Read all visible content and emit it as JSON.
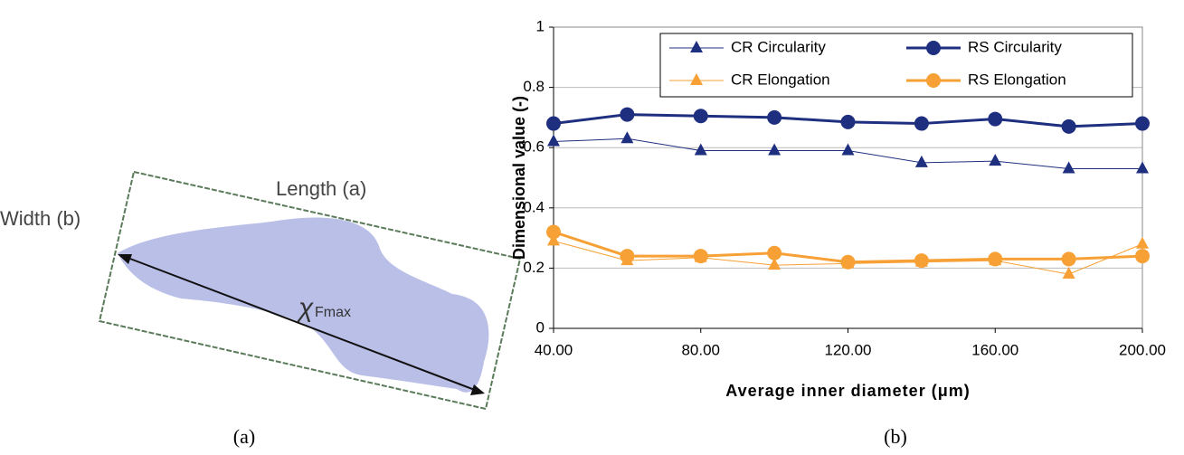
{
  "diagram": {
    "length_label": "Length (a)",
    "width_label": "Width (b)",
    "chi_symbol": "χ",
    "chi_subscript": "Fmax"
  },
  "captions": [
    "(a)",
    "(b)"
  ],
  "chart_data": {
    "type": "line",
    "x_label": "Average inner diameter (μm)",
    "y_label": "Dimensional value (-)",
    "x": [
      40,
      60,
      80,
      100,
      120,
      140,
      160,
      180,
      200
    ],
    "series": [
      {
        "name": "CR Circularity",
        "color": "#1f2f7f",
        "marker": "triangle",
        "line_width": 1,
        "values": [
          0.62,
          0.63,
          0.59,
          0.59,
          0.59,
          0.55,
          0.555,
          0.53,
          0.53
        ]
      },
      {
        "name": "RS Circularity",
        "color": "#1f2f7f",
        "marker": "circle",
        "line_width": 3,
        "values": [
          0.68,
          0.71,
          0.705,
          0.7,
          0.685,
          0.68,
          0.695,
          0.67,
          0.68
        ]
      },
      {
        "name": "CR Elongation",
        "color": "#f7a035",
        "marker": "triangle",
        "line_width": 1,
        "values": [
          0.29,
          0.225,
          0.235,
          0.21,
          0.215,
          0.22,
          0.225,
          0.18,
          0.28
        ]
      },
      {
        "name": "RS Elongation",
        "color": "#f7a035",
        "marker": "circle",
        "line_width": 3,
        "values": [
          0.32,
          0.24,
          0.24,
          0.25,
          0.22,
          0.225,
          0.23,
          0.23,
          0.24
        ]
      }
    ],
    "xlim": [
      40,
      200
    ],
    "xticks": [
      {
        "value": 40,
        "label": "40.00"
      },
      {
        "value": 80,
        "label": "80.00"
      },
      {
        "value": 120,
        "label": "120.00"
      },
      {
        "value": 160,
        "label": "160.00"
      },
      {
        "value": 200,
        "label": "200.00"
      }
    ],
    "ylim": [
      0,
      1
    ],
    "yticks": [
      0,
      0.2,
      0.4,
      0.6,
      0.8,
      1
    ],
    "grid": true
  }
}
